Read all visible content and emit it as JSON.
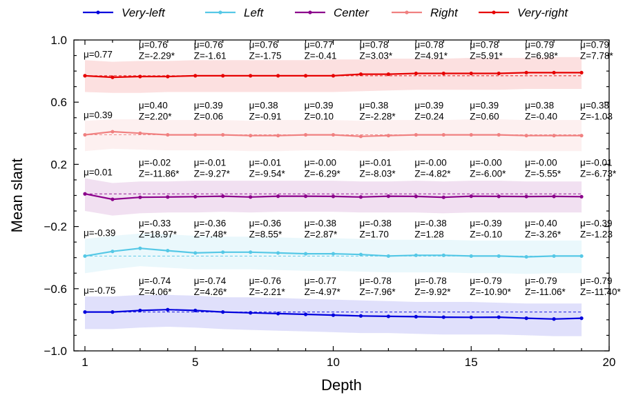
{
  "chart_data": {
    "type": "line",
    "xlabel": "Depth",
    "ylabel": "Mean slant",
    "xlim": [
      0.6,
      20
    ],
    "ylim": [
      -1.0,
      1.0
    ],
    "xticks": [
      1,
      5,
      10,
      15,
      20
    ],
    "xtick_labels": [
      "1",
      "5",
      "10",
      "15",
      "20"
    ],
    "yticks": [
      -1.0,
      -0.6,
      -0.2,
      0.2,
      0.6,
      1.0
    ],
    "ytick_labels": [
      "−1.0",
      "−0.6",
      "−0.2",
      "0.2",
      "0.6",
      "1.0"
    ],
    "grid": false,
    "legend_position": "top",
    "x": [
      1,
      2,
      3,
      4,
      5,
      6,
      7,
      8,
      9,
      10,
      11,
      12,
      13,
      14,
      15,
      16,
      17,
      18,
      19
    ],
    "series": [
      {
        "name": "Very-left",
        "color": "#0000dd",
        "values": [
          -0.75,
          -0.75,
          -0.74,
          -0.735,
          -0.74,
          -0.75,
          -0.755,
          -0.76,
          -0.765,
          -0.77,
          -0.775,
          -0.778,
          -0.78,
          -0.783,
          -0.784,
          -0.783,
          -0.79,
          -0.795,
          -0.79
        ],
        "band_upper": [
          -0.65,
          -0.65,
          -0.64,
          -0.64,
          -0.645,
          -0.655,
          -0.655,
          -0.66,
          -0.665,
          -0.67,
          -0.675,
          -0.68,
          -0.685,
          -0.685,
          -0.685,
          -0.69,
          -0.695,
          -0.695,
          -0.695
        ],
        "band_lower": [
          -0.86,
          -0.86,
          -0.85,
          -0.845,
          -0.85,
          -0.86,
          -0.865,
          -0.87,
          -0.875,
          -0.88,
          -0.885,
          -0.885,
          -0.89,
          -0.895,
          -0.895,
          -0.895,
          -0.9,
          -0.905,
          -0.905
        ],
        "baseline": -0.75,
        "annotations": [
          {
            "x": 1,
            "mu": "μ=-0.75"
          },
          {
            "x": 3,
            "mu": "μ=-0.74",
            "z": "Z=4.06*"
          },
          {
            "x": 5,
            "mu": "μ=-0.74",
            "z": "Z=4.26*"
          },
          {
            "x": 7,
            "mu": "μ=-0.76",
            "z": "Z=-2.21*"
          },
          {
            "x": 9,
            "mu": "μ=-0.77",
            "z": "Z=-4.97*"
          },
          {
            "x": 11,
            "mu": "μ=-0.78",
            "z": "Z=-7.96*"
          },
          {
            "x": 13,
            "mu": "μ=-0.78",
            "z": "Z=-9.92*"
          },
          {
            "x": 15,
            "mu": "μ=-0.79",
            "z": "Z=-10.90*"
          },
          {
            "x": 17,
            "mu": "μ=-0.79",
            "z": "Z=-11.06*"
          },
          {
            "x": 19,
            "mu": "μ=-0.79",
            "z": "Z=-11.40*"
          }
        ]
      },
      {
        "name": "Left",
        "color": "#55c8e6",
        "values": [
          -0.39,
          -0.36,
          -0.34,
          -0.355,
          -0.37,
          -0.365,
          -0.365,
          -0.37,
          -0.375,
          -0.375,
          -0.38,
          -0.39,
          -0.385,
          -0.385,
          -0.39,
          -0.39,
          -0.395,
          -0.39,
          -0.39
        ],
        "band_upper": [
          -0.28,
          -0.26,
          -0.245,
          -0.25,
          -0.26,
          -0.265,
          -0.265,
          -0.27,
          -0.275,
          -0.275,
          -0.28,
          -0.285,
          -0.285,
          -0.285,
          -0.29,
          -0.29,
          -0.29,
          -0.29,
          -0.29
        ],
        "band_lower": [
          -0.5,
          -0.475,
          -0.455,
          -0.465,
          -0.475,
          -0.475,
          -0.475,
          -0.48,
          -0.485,
          -0.485,
          -0.49,
          -0.495,
          -0.495,
          -0.495,
          -0.5,
          -0.5,
          -0.505,
          -0.5,
          -0.5
        ],
        "baseline": -0.39,
        "annotations": [
          {
            "x": 1,
            "mu": "μ=-0.39"
          },
          {
            "x": 3,
            "mu": "μ=-0.33",
            "z": "Z=18.97*"
          },
          {
            "x": 5,
            "mu": "μ=-0.36",
            "z": "Z=7.48*"
          },
          {
            "x": 7,
            "mu": "μ=-0.36",
            "z": "Z=8.55*"
          },
          {
            "x": 9,
            "mu": "μ=-0.38",
            "z": "Z=2.87*"
          },
          {
            "x": 11,
            "mu": "μ=-0.38",
            "z": "Z=1.70"
          },
          {
            "x": 13,
            "mu": "μ=-0.38",
            "z": "Z=1.28"
          },
          {
            "x": 15,
            "mu": "μ=-0.39",
            "z": "Z=-0.10"
          },
          {
            "x": 17,
            "mu": "μ=-0.40",
            "z": "Z=-3.26*"
          },
          {
            "x": 19,
            "mu": "μ=-0.39",
            "z": "Z=-1.23"
          }
        ]
      },
      {
        "name": "Center",
        "color": "#8b008b",
        "values": [
          0.01,
          -0.025,
          -0.012,
          -0.01,
          -0.008,
          -0.005,
          -0.01,
          -0.005,
          -0.005,
          -0.006,
          -0.01,
          -0.005,
          -0.006,
          -0.012,
          -0.005,
          -0.006,
          -0.007,
          -0.006,
          -0.008
        ],
        "band_upper": [
          0.11,
          0.08,
          0.09,
          0.09,
          0.095,
          0.095,
          0.095,
          0.095,
          0.095,
          0.095,
          0.09,
          0.09,
          0.095,
          0.09,
          0.095,
          0.095,
          0.09,
          0.09,
          0.09
        ],
        "band_lower": [
          -0.1,
          -0.13,
          -0.115,
          -0.11,
          -0.11,
          -0.105,
          -0.11,
          -0.105,
          -0.105,
          -0.105,
          -0.11,
          -0.11,
          -0.11,
          -0.115,
          -0.11,
          -0.11,
          -0.11,
          -0.11,
          -0.11
        ],
        "baseline": 0.01,
        "annotations": [
          {
            "x": 1,
            "mu": "μ=0.01"
          },
          {
            "x": 3,
            "mu": "μ=-0.02",
            "z": "Z=-11.86*"
          },
          {
            "x": 5,
            "mu": "μ=-0.01",
            "z": "Z=-9.27*"
          },
          {
            "x": 7,
            "mu": "μ=-0.01",
            "z": "Z=-9.54*"
          },
          {
            "x": 9,
            "mu": "μ=-0.00",
            "z": "Z=-6.29*"
          },
          {
            "x": 11,
            "mu": "μ=-0.01",
            "z": "Z=-8.03*"
          },
          {
            "x": 13,
            "mu": "μ=-0.00",
            "z": "Z=-4.82*"
          },
          {
            "x": 15,
            "mu": "μ=-0.00",
            "z": "Z=-6.00*"
          },
          {
            "x": 17,
            "mu": "μ=-0.00",
            "z": "Z=-5.55*"
          },
          {
            "x": 19,
            "mu": "μ=-0.01",
            "z": "Z=-6.73*"
          }
        ]
      },
      {
        "name": "Right",
        "color": "#f08080",
        "values": [
          0.39,
          0.41,
          0.4,
          0.39,
          0.39,
          0.39,
          0.385,
          0.385,
          0.39,
          0.39,
          0.38,
          0.385,
          0.39,
          0.39,
          0.39,
          0.39,
          0.385,
          0.385,
          0.385
        ],
        "band_upper": [
          0.48,
          0.49,
          0.49,
          0.485,
          0.485,
          0.485,
          0.48,
          0.485,
          0.485,
          0.485,
          0.48,
          0.485,
          0.485,
          0.485,
          0.49,
          0.49,
          0.485,
          0.485,
          0.485
        ],
        "band_lower": [
          0.285,
          0.3,
          0.295,
          0.29,
          0.29,
          0.29,
          0.285,
          0.285,
          0.29,
          0.29,
          0.285,
          0.285,
          0.29,
          0.29,
          0.29,
          0.29,
          0.285,
          0.285,
          0.285
        ],
        "baseline": 0.39,
        "annotations": [
          {
            "x": 1,
            "mu": "μ=0.39"
          },
          {
            "x": 3,
            "mu": "μ=0.40",
            "z": "Z=2.20*"
          },
          {
            "x": 5,
            "mu": "μ=0.39",
            "z": "Z=0.06"
          },
          {
            "x": 7,
            "mu": "μ=0.38",
            "z": "Z=-0.91"
          },
          {
            "x": 9,
            "mu": "μ=0.39",
            "z": "Z=0.10"
          },
          {
            "x": 11,
            "mu": "μ=0.38",
            "z": "Z=-2.28*"
          },
          {
            "x": 13,
            "mu": "μ=0.39",
            "z": "Z=0.24"
          },
          {
            "x": 15,
            "mu": "μ=0.39",
            "z": "Z=0.60"
          },
          {
            "x": 17,
            "mu": "μ=0.38",
            "z": "Z=-0.40"
          },
          {
            "x": 19,
            "mu": "μ=0.38",
            "z": "Z=-1.03"
          }
        ]
      },
      {
        "name": "Very-right",
        "color": "#e60000",
        "values": [
          0.77,
          0.76,
          0.765,
          0.765,
          0.77,
          0.77,
          0.77,
          0.77,
          0.77,
          0.77,
          0.78,
          0.78,
          0.785,
          0.785,
          0.785,
          0.785,
          0.79,
          0.79,
          0.79
        ],
        "band_upper": [
          0.87,
          0.86,
          0.865,
          0.865,
          0.87,
          0.87,
          0.87,
          0.87,
          0.87,
          0.875,
          0.875,
          0.88,
          0.88,
          0.88,
          0.885,
          0.885,
          0.885,
          0.89,
          0.89
        ],
        "band_lower": [
          0.665,
          0.66,
          0.66,
          0.665,
          0.665,
          0.665,
          0.665,
          0.665,
          0.665,
          0.665,
          0.67,
          0.675,
          0.68,
          0.68,
          0.68,
          0.68,
          0.685,
          0.685,
          0.685
        ],
        "baseline": 0.77,
        "annotations": [
          {
            "x": 1,
            "mu": "μ=0.77"
          },
          {
            "x": 3,
            "mu": "μ=0.76",
            "z": "Z=-2.29*"
          },
          {
            "x": 5,
            "mu": "μ=0.76",
            "z": "Z=-1.61"
          },
          {
            "x": 7,
            "mu": "μ=0.76",
            "z": "Z=-1.75"
          },
          {
            "x": 9,
            "mu": "μ=0.77",
            "z": "Z=-0.41"
          },
          {
            "x": 11,
            "mu": "μ=0.78",
            "z": "Z=3.03*"
          },
          {
            "x": 13,
            "mu": "μ=0.78",
            "z": "Z=4.91*"
          },
          {
            "x": 15,
            "mu": "μ=0.78",
            "z": "Z=5.91*"
          },
          {
            "x": 17,
            "mu": "μ=0.79",
            "z": "Z=6.98*"
          },
          {
            "x": 19,
            "mu": "μ=0.79",
            "z": "Z=7.78*"
          }
        ]
      }
    ]
  }
}
